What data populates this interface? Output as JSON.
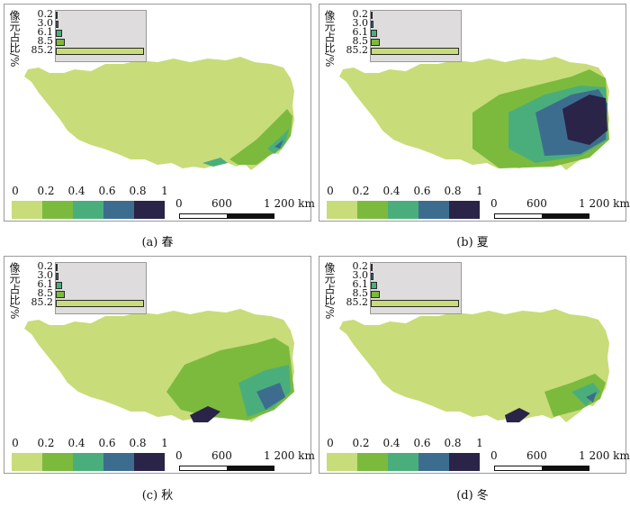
{
  "inset_ylabel": "像元占比/%",
  "inset_ticks": [
    "0.2",
    "3.0",
    "6.1",
    "8.5",
    "85.2"
  ],
  "legend_ticks": [
    "0",
    "0.2",
    "0.4",
    "0.6",
    "0.8",
    "1"
  ],
  "legend_colors": [
    "#c8dc7a",
    "#7cba3e",
    "#4aae7c",
    "#3d6d8e",
    "#2a2448"
  ],
  "scale_labels": [
    "0",
    "600",
    "1 200 km"
  ],
  "map_colors": {
    "base": "#c8dc7a",
    "c2": "#7cba3e",
    "c3": "#4aae7c",
    "c4": "#3d6d8e",
    "c5": "#2a2448"
  },
  "panels": [
    {
      "caption": "(a) 春",
      "inset_values": [
        0.2,
        3.0,
        6.1,
        8.5,
        85.2
      ]
    },
    {
      "caption": "(b) 夏",
      "inset_values": [
        0.2,
        3.0,
        6.1,
        8.5,
        85.2
      ]
    },
    {
      "caption": "(c) 秋",
      "inset_values": [
        0.2,
        3.0,
        6.1,
        8.5,
        85.2
      ]
    },
    {
      "caption": "(d) 冬",
      "inset_values": [
        0.2,
        3.0,
        6.1,
        8.5,
        85.2
      ]
    }
  ]
}
